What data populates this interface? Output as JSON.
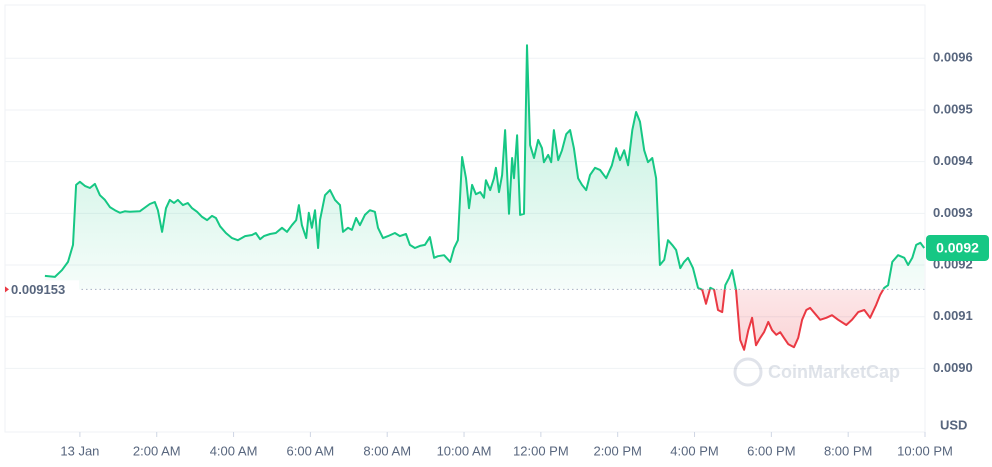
{
  "chart_data": {
    "type": "line",
    "x": [
      -0.91,
      -0.65,
      -0.47,
      -0.31,
      -0.18,
      -0.1,
      0,
      0.13,
      0.26,
      0.39,
      0.52,
      0.65,
      0.78,
      0.91,
      1.04,
      1.17,
      1.3,
      1.56,
      1.82,
      1.95,
      2.03,
      2.14,
      2.24,
      2.34,
      2.45,
      2.55,
      2.68,
      2.81,
      2.92,
      3.05,
      3.18,
      3.31,
      3.44,
      3.54,
      3.65,
      3.8,
      3.96,
      4.11,
      4.3,
      4.48,
      4.58,
      4.69,
      4.79,
      4.95,
      5.1,
      5.26,
      5.39,
      5.52,
      5.63,
      5.7,
      5.78,
      5.89,
      5.96,
      6.04,
      6.12,
      6.2,
      6.25,
      6.38,
      6.51,
      6.64,
      6.77,
      6.85,
      6.98,
      7.08,
      7.19,
      7.29,
      7.42,
      7.55,
      7.68,
      7.76,
      7.89,
      8.02,
      8.2,
      8.33,
      8.49,
      8.59,
      8.72,
      8.85,
      8.98,
      9.11,
      9.22,
      9.32,
      9.48,
      9.64,
      9.74,
      9.84,
      9.95,
      10.05,
      10.13,
      10.21,
      10.31,
      10.42,
      10.52,
      10.57,
      10.68,
      10.78,
      10.83,
      10.91,
      10.99,
      11.07,
      11.17,
      11.25,
      11.3,
      11.38,
      11.46,
      11.56,
      11.64,
      11.72,
      11.82,
      11.93,
      12.03,
      12.08,
      12.19,
      12.27,
      12.34,
      12.45,
      12.55,
      12.66,
      12.76,
      12.86,
      12.97,
      13.07,
      13.18,
      13.28,
      13.41,
      13.54,
      13.7,
      13.85,
      13.96,
      14.06,
      14.17,
      14.27,
      14.38,
      14.48,
      14.58,
      14.69,
      14.79,
      14.9,
      15.0,
      15.1,
      15.21,
      15.31,
      15.42,
      15.52,
      15.63,
      15.73,
      15.83,
      15.96,
      16.09,
      16.2,
      16.3,
      16.41,
      16.51,
      16.61,
      16.72,
      16.8,
      16.9,
      16.98,
      17.08,
      17.19,
      17.29,
      17.4,
      17.5,
      17.6,
      17.71,
      17.81,
      17.92,
      18.02,
      18.13,
      18.23,
      18.33,
      18.44,
      18.59,
      18.7,
      18.8,
      18.91,
      19.01,
      19.17,
      19.27,
      19.43,
      19.58,
      19.74,
      19.95,
      20.1,
      20.26,
      20.42,
      20.57,
      20.73,
      20.83,
      20.94,
      21.04,
      21.15,
      21.3,
      21.46,
      21.56,
      21.67,
      21.77,
      21.88,
      21.98
    ],
    "values": [
      0.009179,
      0.009177,
      0.00919,
      0.009206,
      0.009239,
      0.009355,
      0.009361,
      0.009353,
      0.009349,
      0.009357,
      0.009335,
      0.009326,
      0.009312,
      0.009306,
      0.009301,
      0.009304,
      0.009303,
      0.009304,
      0.009318,
      0.009322,
      0.009306,
      0.009264,
      0.00931,
      0.009326,
      0.00932,
      0.009326,
      0.009316,
      0.00932,
      0.00931,
      0.009303,
      0.009293,
      0.009287,
      0.009295,
      0.009291,
      0.009275,
      0.009262,
      0.009252,
      0.009248,
      0.009256,
      0.009258,
      0.009262,
      0.00925,
      0.009256,
      0.00926,
      0.009262,
      0.009272,
      0.009264,
      0.009277,
      0.009287,
      0.009316,
      0.009277,
      0.009252,
      0.009301,
      0.009272,
      0.009306,
      0.009233,
      0.009287,
      0.009335,
      0.009345,
      0.009326,
      0.009316,
      0.009264,
      0.009272,
      0.009268,
      0.009291,
      0.009277,
      0.009297,
      0.009306,
      0.009303,
      0.009272,
      0.009252,
      0.009256,
      0.009262,
      0.009256,
      0.00926,
      0.009239,
      0.009233,
      0.009237,
      0.009239,
      0.009254,
      0.009214,
      0.009217,
      0.009219,
      0.009206,
      0.009233,
      0.009248,
      0.009409,
      0.009368,
      0.00931,
      0.009355,
      0.009337,
      0.009341,
      0.00933,
      0.009364,
      0.009345,
      0.009368,
      0.009388,
      0.009341,
      0.009374,
      0.009461,
      0.009299,
      0.009407,
      0.009368,
      0.009451,
      0.009297,
      0.009299,
      0.009625,
      0.009432,
      0.009407,
      0.009442,
      0.009426,
      0.009399,
      0.009413,
      0.009399,
      0.009461,
      0.009403,
      0.009422,
      0.009453,
      0.009461,
      0.009426,
      0.009368,
      0.009355,
      0.009345,
      0.009374,
      0.009388,
      0.009384,
      0.009368,
      0.009393,
      0.009426,
      0.009403,
      0.009422,
      0.009393,
      0.009461,
      0.009496,
      0.009477,
      0.009422,
      0.009399,
      0.009407,
      0.009368,
      0.0092,
      0.00921,
      0.009248,
      0.009239,
      0.009229,
      0.009194,
      0.009206,
      0.009214,
      0.009194,
      0.009156,
      0.009152,
      0.009125,
      0.009156,
      0.009152,
      0.009113,
      0.009109,
      0.009161,
      0.009175,
      0.00919,
      0.009152,
      0.009055,
      0.009036,
      0.009074,
      0.009098,
      0.009045,
      0.009059,
      0.00907,
      0.00909,
      0.009074,
      0.009065,
      0.00907,
      0.009059,
      0.009047,
      0.009041,
      0.009059,
      0.009094,
      0.009113,
      0.009117,
      0.009103,
      0.009094,
      0.009098,
      0.009103,
      0.009094,
      0.009084,
      0.009094,
      0.009109,
      0.009113,
      0.009098,
      0.009123,
      0.009142,
      0.009156,
      0.009161,
      0.009206,
      0.009219,
      0.009214,
      0.0092,
      0.009214,
      0.009239,
      0.009243,
      0.009233
    ],
    "up_color": "#16c784",
    "down_color": "#ea3943",
    "baseline": 0.009153,
    "last_price_label": "0.0092",
    "xlim": [
      -1.95,
      22.0
    ],
    "xticks": [
      {
        "value": 0,
        "label": "13 Jan"
      },
      {
        "value": 2,
        "label": "2:00 AM"
      },
      {
        "value": 4,
        "label": "4:00 AM"
      },
      {
        "value": 6,
        "label": "6:00 AM"
      },
      {
        "value": 8,
        "label": "8:00 AM"
      },
      {
        "value": 10,
        "label": "10:00 AM"
      },
      {
        "value": 12,
        "label": "12:00 PM"
      },
      {
        "value": 14,
        "label": "2:00 PM"
      },
      {
        "value": 16,
        "label": "4:00 PM"
      },
      {
        "value": 18,
        "label": "6:00 PM"
      },
      {
        "value": 20,
        "label": "8:00 PM"
      },
      {
        "value": 22,
        "label": "10:00 PM"
      }
    ],
    "ylim": [
      0.008877,
      0.009703
    ],
    "yticks": [
      {
        "value": 0.009,
        "label": "0.0090"
      },
      0.0091,
      0.0092,
      0.0093,
      0.0094,
      0.0095,
      0.0096
    ],
    "y_unit": "USD",
    "grid": true,
    "watermark": "CoinMarketCap"
  }
}
